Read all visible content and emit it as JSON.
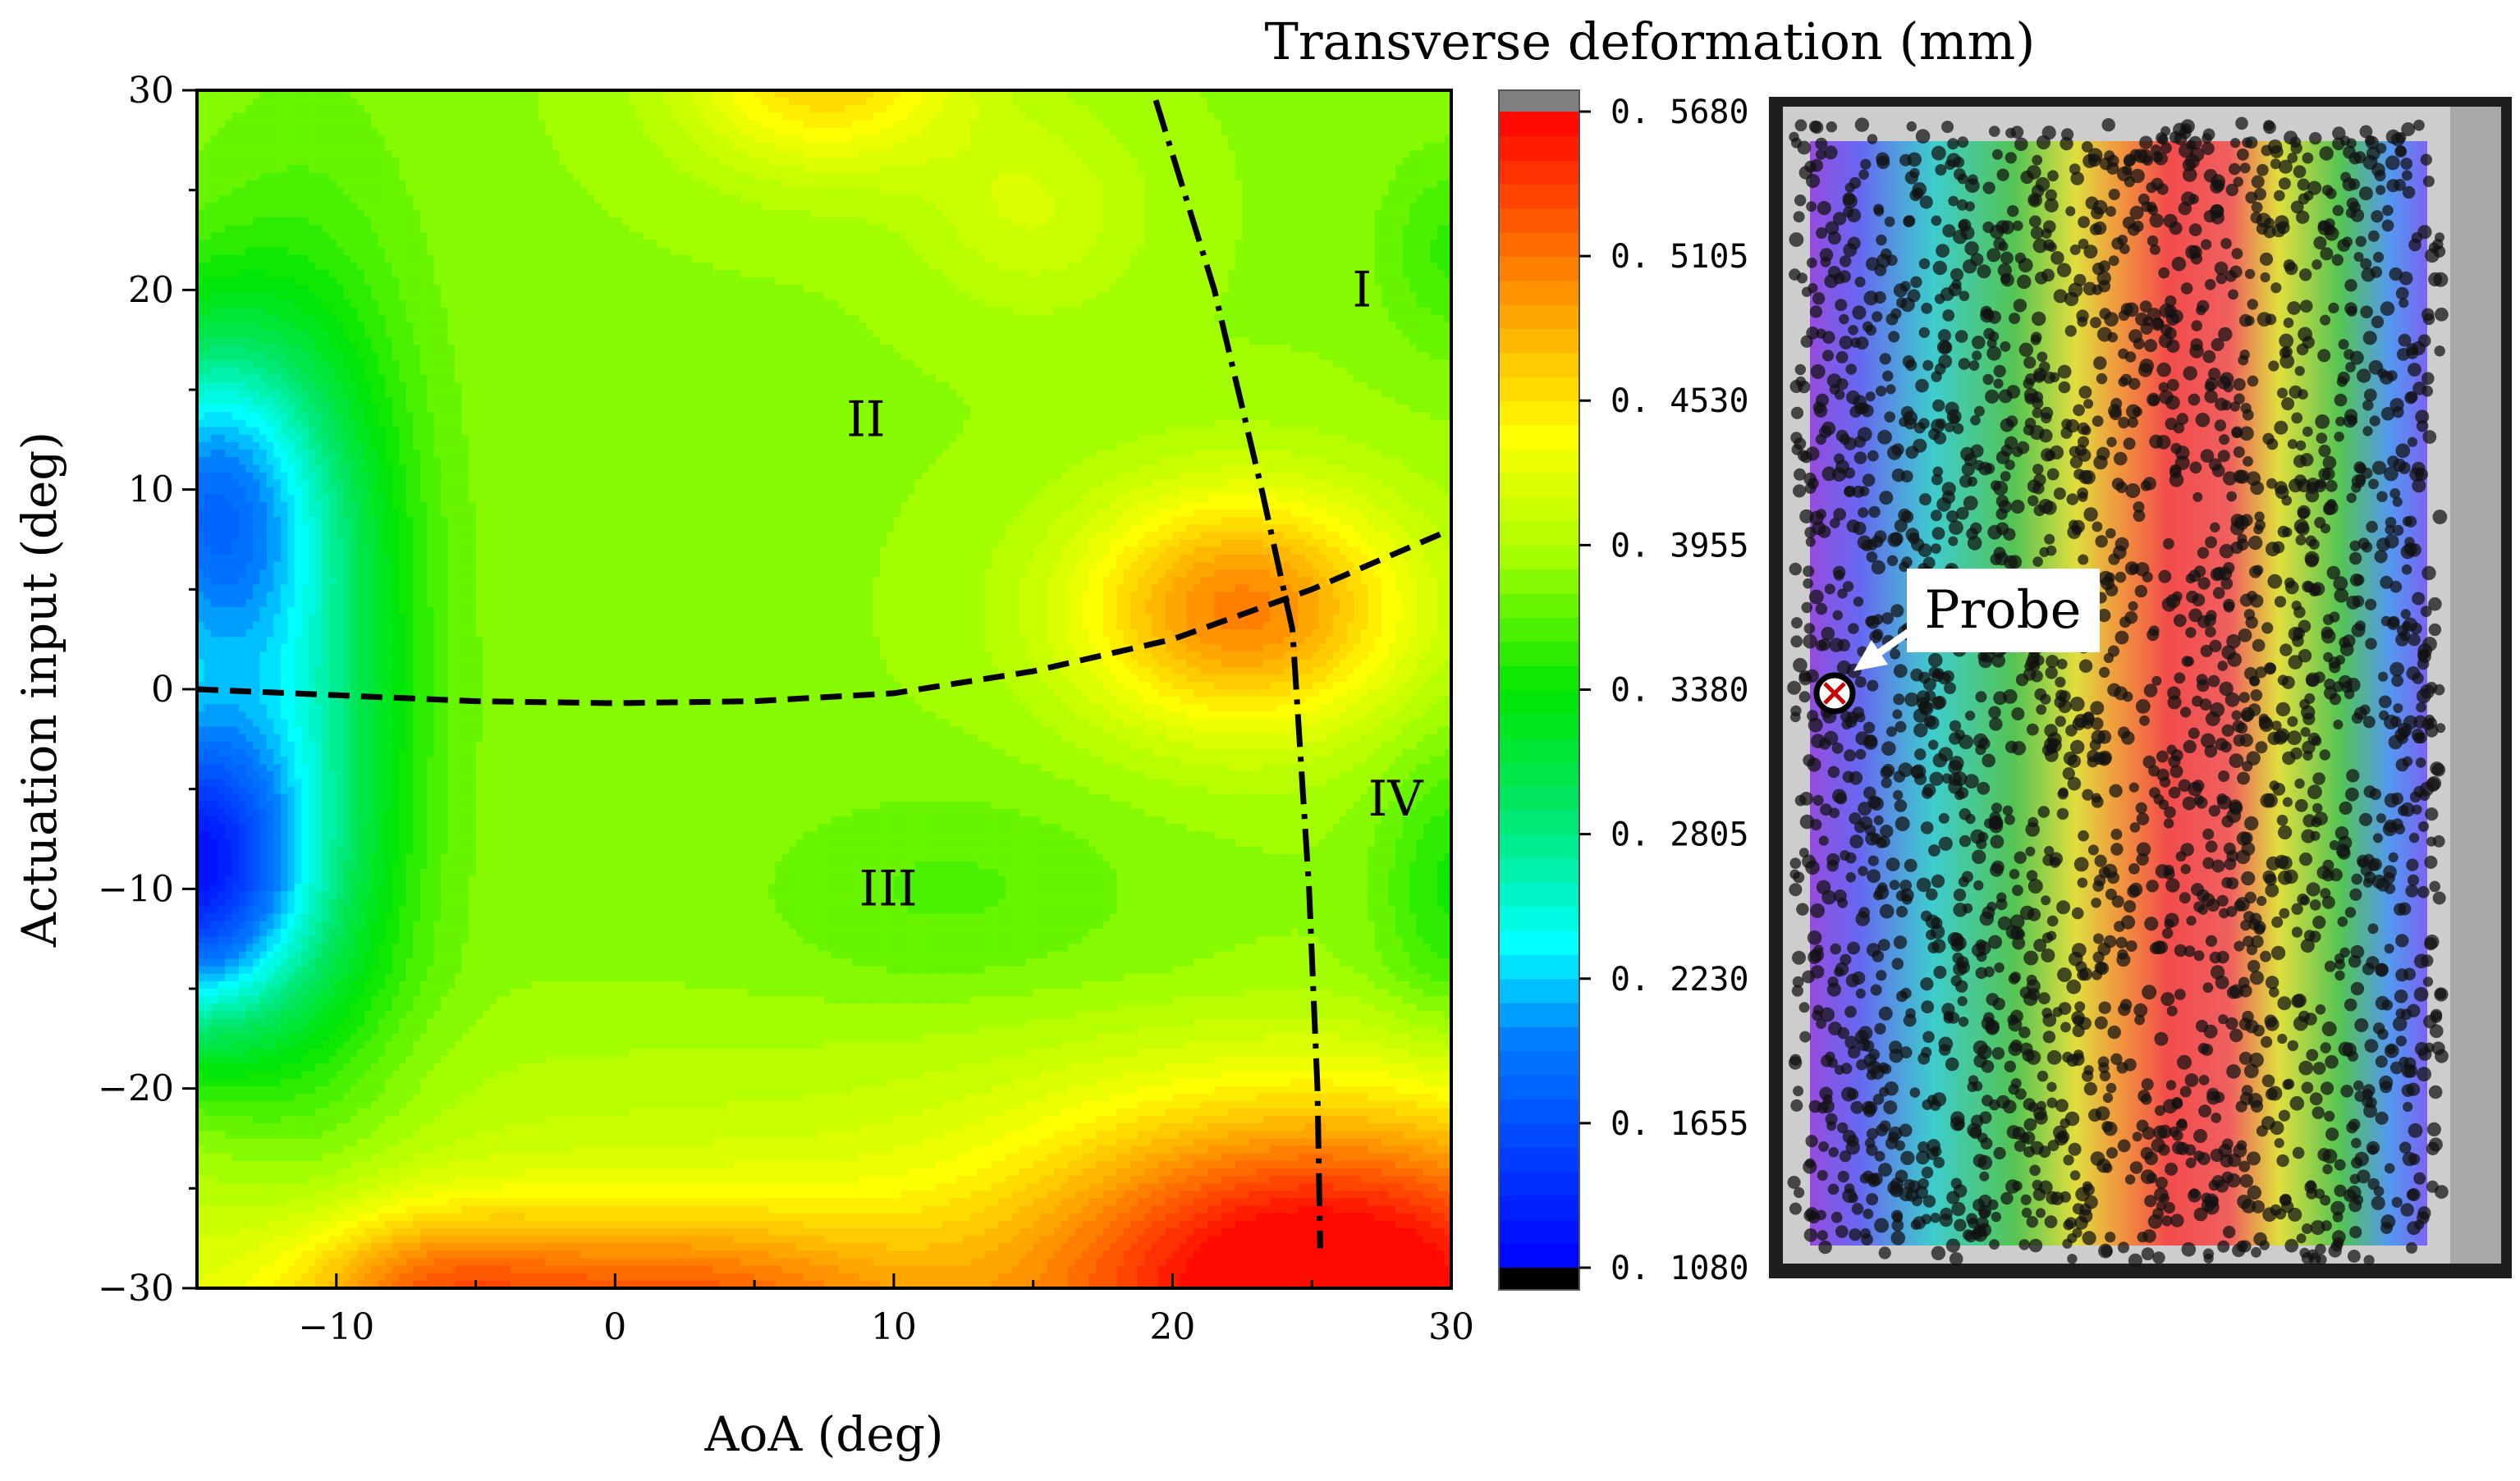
{
  "chart_data": [
    {
      "type": "heatmap",
      "subtype": "filled-contour",
      "title": "Transverse deformation (mm)",
      "xlabel": "AoA (deg)",
      "ylabel": "Actuation input (deg)",
      "xlim": [
        -15,
        30
      ],
      "ylim": [
        -30,
        30
      ],
      "x_ticks": [
        -10,
        0,
        10,
        20,
        30
      ],
      "y_ticks": [
        -30,
        -20,
        -10,
        0,
        10,
        20,
        30
      ],
      "x_tick_labels": [
        "−10",
        "0",
        "10",
        "20",
        "30"
      ],
      "y_tick_labels": [
        "−30",
        "−20",
        "−10",
        "0",
        "10",
        "20",
        "30"
      ],
      "regions": [
        {
          "label": "I",
          "x": 26.8,
          "y": 20
        },
        {
          "label": "II",
          "x": 9,
          "y": 13.5
        },
        {
          "label": "III",
          "x": 9.8,
          "y": -10
        },
        {
          "label": "IV",
          "x": 28,
          "y": -5.5
        }
      ],
      "dashed_curve": {
        "x": [
          -15,
          -10,
          -5,
          0,
          5,
          10,
          15,
          20,
          25,
          30
        ],
        "y": [
          0,
          -0.3,
          -0.6,
          -0.7,
          -0.6,
          -0.2,
          0.9,
          2.5,
          5.0,
          8.0
        ]
      },
      "dashdot_curve": {
        "x": [
          19.4,
          21.5,
          23.2,
          24.3,
          24.9,
          25.2,
          25.3
        ],
        "y": [
          29.5,
          20,
          10,
          3,
          -10,
          -20,
          -28
        ]
      },
      "field_peaks": [
        {
          "x": 22.5,
          "y": 3.5,
          "value": 0.5
        },
        {
          "x": 24,
          "y": -28,
          "value": 0.53
        },
        {
          "x": 7.5,
          "y": 30,
          "value": 0.46
        },
        {
          "x": -15,
          "y": -9,
          "value": 0.15
        },
        {
          "x": -15,
          "y": 8,
          "value": 0.21
        }
      ]
    },
    {
      "type": "colorbar",
      "range": [
        0.108,
        0.568
      ],
      "ticks": [
        0.108,
        0.1655,
        0.223,
        0.2805,
        0.338,
        0.3955,
        0.453,
        0.5105,
        0.568
      ],
      "tick_labels": [
        "0. 1080",
        "0. 1655",
        "0. 2230",
        "0. 2805",
        "0. 3380",
        "0. 3955",
        "0. 4530",
        "0. 5105",
        "0. 5680"
      ]
    }
  ],
  "specimen": {
    "probe_label": "Probe"
  },
  "colors": {
    "over": "#808080",
    "under": "#000000"
  }
}
